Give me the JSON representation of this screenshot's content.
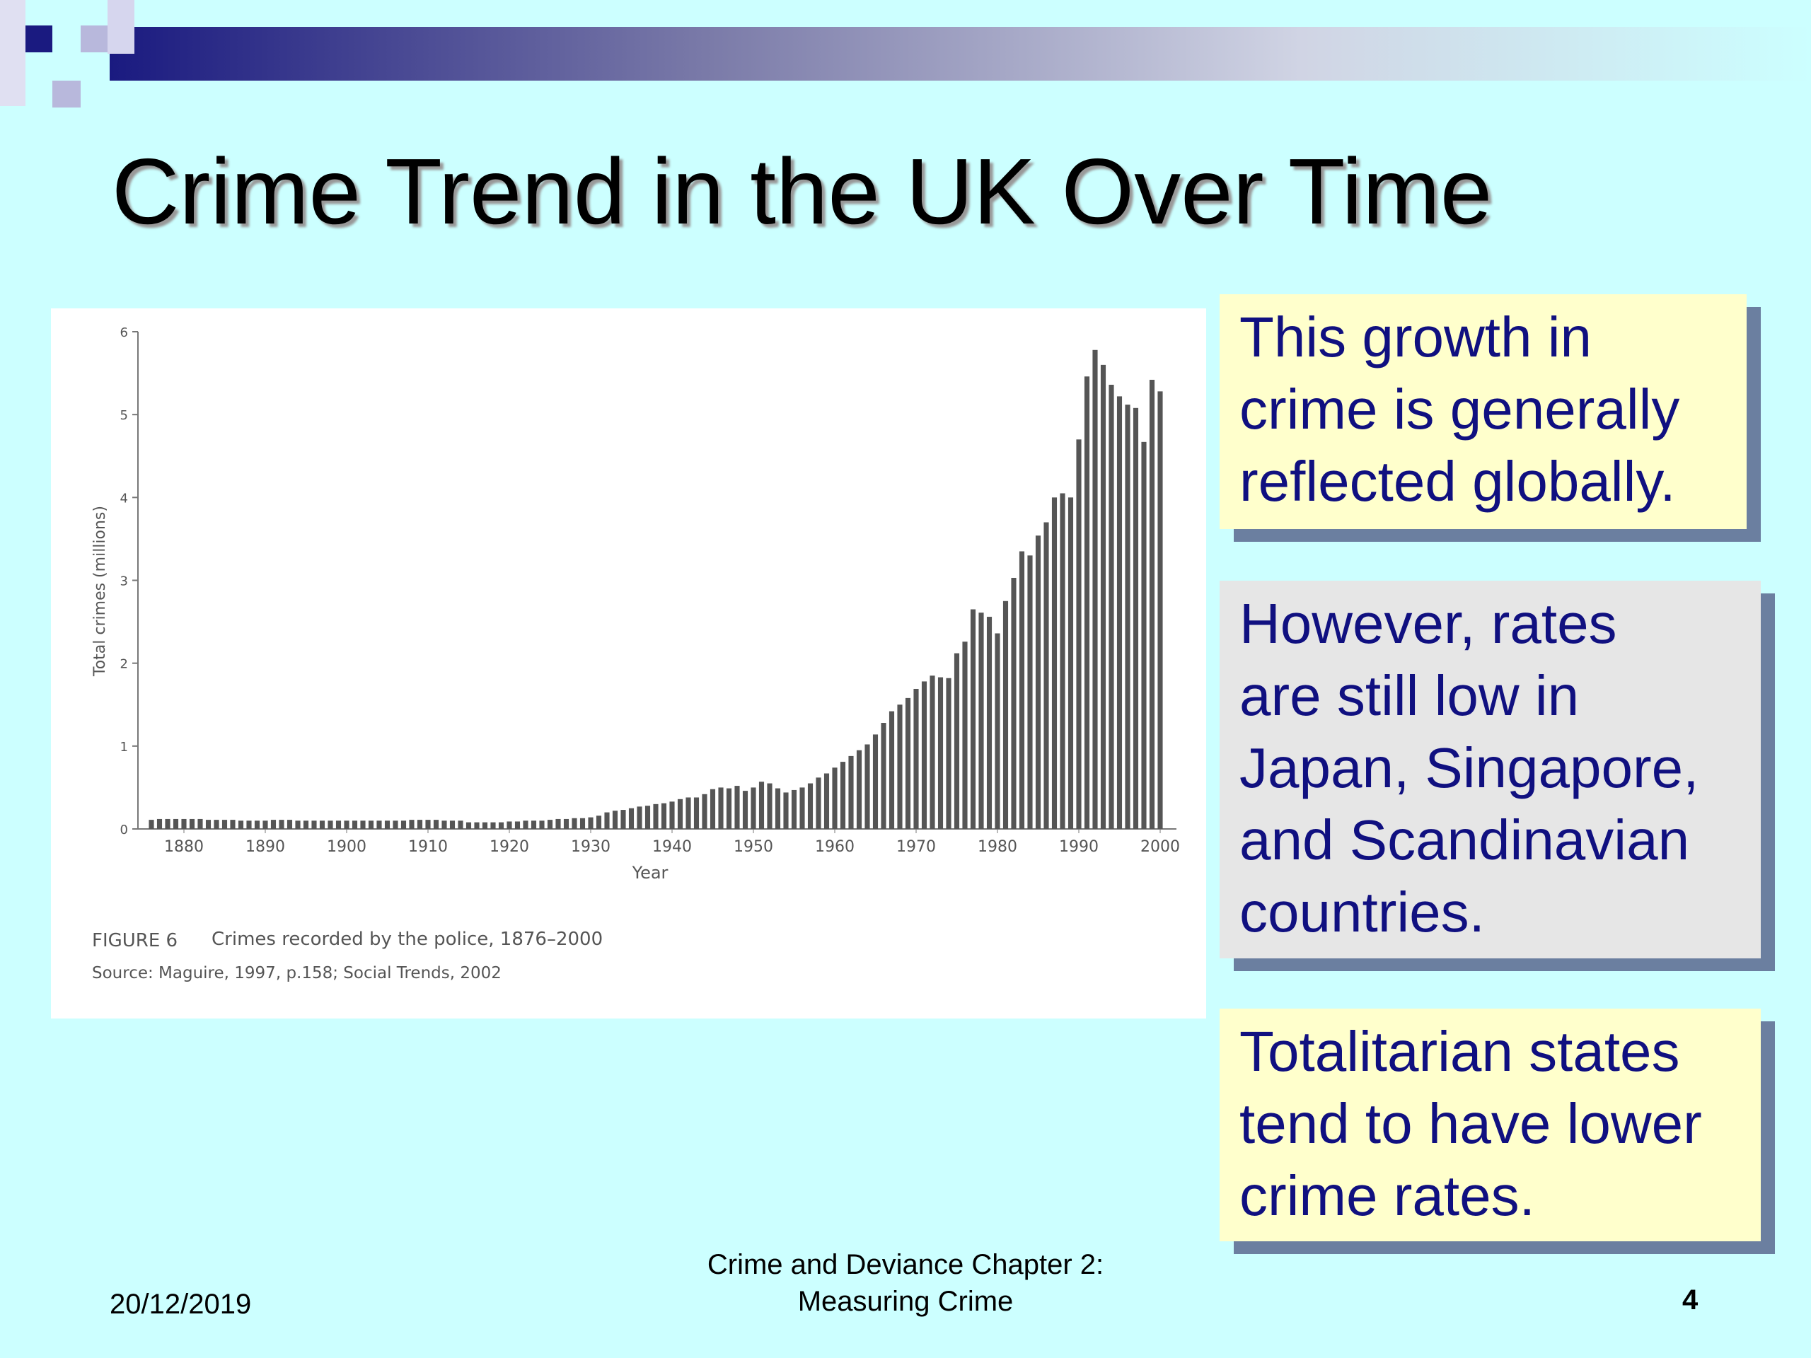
{
  "slide": {
    "title": "Crime Trend in the UK Over Time",
    "boxes": [
      {
        "lines": [
          "This growth in",
          "crime is generally",
          "reflected globally."
        ]
      },
      {
        "lines": [
          "However, rates",
          "are still low in",
          "Japan, Singapore,",
          "and Scandinavian",
          "countries."
        ]
      },
      {
        "lines": [
          "Totalitarian states",
          "tend to have lower",
          "crime rates."
        ]
      }
    ],
    "footer": {
      "date": "20/12/2019",
      "center": [
        "Crime and Deviance Chapter 2:",
        "Measuring Crime"
      ],
      "page": "4"
    }
  },
  "chart_data": {
    "type": "bar",
    "ylabel": "Total crimes (millions)",
    "xlabel": "Year",
    "caption_label": "FIGURE 6",
    "caption": "Crimes recorded by the police, 1876–2000",
    "source": "Source: Maguire, 1997, p.158; Social Trends, 2002",
    "color": "#555555",
    "xlim": [
      1874,
      2002
    ],
    "xticks": [
      1880,
      1890,
      1900,
      1910,
      1920,
      1930,
      1940,
      1950,
      1960,
      1970,
      1980,
      1990,
      2000
    ],
    "ylim": [
      0,
      6
    ],
    "yticks": [
      0,
      1,
      2,
      3,
      4,
      5,
      6
    ],
    "x": [
      1876,
      1877,
      1878,
      1879,
      1880,
      1881,
      1882,
      1883,
      1884,
      1885,
      1886,
      1887,
      1888,
      1889,
      1890,
      1891,
      1892,
      1893,
      1894,
      1895,
      1896,
      1897,
      1898,
      1899,
      1900,
      1901,
      1902,
      1903,
      1904,
      1905,
      1906,
      1907,
      1908,
      1909,
      1910,
      1911,
      1912,
      1913,
      1914,
      1915,
      1916,
      1917,
      1918,
      1919,
      1920,
      1921,
      1922,
      1923,
      1924,
      1925,
      1926,
      1927,
      1928,
      1929,
      1930,
      1931,
      1932,
      1933,
      1934,
      1935,
      1936,
      1937,
      1938,
      1939,
      1940,
      1941,
      1942,
      1943,
      1944,
      1945,
      1946,
      1947,
      1948,
      1949,
      1950,
      1951,
      1952,
      1953,
      1954,
      1955,
      1956,
      1957,
      1958,
      1959,
      1960,
      1961,
      1962,
      1963,
      1964,
      1965,
      1966,
      1967,
      1968,
      1969,
      1970,
      1971,
      1972,
      1973,
      1974,
      1975,
      1976,
      1977,
      1978,
      1979,
      1980,
      1981,
      1982,
      1983,
      1984,
      1985,
      1986,
      1987,
      1988,
      1989,
      1990,
      1991,
      1992,
      1993,
      1994,
      1995,
      1996,
      1997,
      1998,
      1999,
      2000
    ],
    "values": [
      0.11,
      0.12,
      0.12,
      0.12,
      0.12,
      0.12,
      0.12,
      0.11,
      0.11,
      0.11,
      0.11,
      0.1,
      0.1,
      0.1,
      0.1,
      0.11,
      0.11,
      0.11,
      0.1,
      0.1,
      0.1,
      0.1,
      0.1,
      0.1,
      0.1,
      0.1,
      0.1,
      0.1,
      0.1,
      0.1,
      0.1,
      0.1,
      0.11,
      0.11,
      0.11,
      0.11,
      0.1,
      0.1,
      0.1,
      0.08,
      0.08,
      0.08,
      0.08,
      0.08,
      0.09,
      0.09,
      0.1,
      0.1,
      0.1,
      0.11,
      0.12,
      0.12,
      0.13,
      0.13,
      0.14,
      0.16,
      0.2,
      0.22,
      0.23,
      0.25,
      0.27,
      0.28,
      0.3,
      0.31,
      0.33,
      0.36,
      0.38,
      0.38,
      0.42,
      0.48,
      0.5,
      0.49,
      0.52,
      0.46,
      0.5,
      0.57,
      0.55,
      0.49,
      0.44,
      0.47,
      0.5,
      0.55,
      0.62,
      0.67,
      0.74,
      0.81,
      0.88,
      0.95,
      1.02,
      1.14,
      1.28,
      1.42,
      1.5,
      1.58,
      1.69,
      1.78,
      1.85,
      1.83,
      1.82,
      2.12,
      2.26,
      2.65,
      2.61,
      2.56,
      2.36,
      2.75,
      3.03,
      3.35,
      3.3,
      3.54,
      3.7,
      4.0,
      4.05,
      4.0,
      4.7,
      5.46,
      5.78,
      5.6,
      5.36,
      5.22,
      5.12,
      5.08,
      4.67,
      5.42,
      5.28
    ]
  }
}
